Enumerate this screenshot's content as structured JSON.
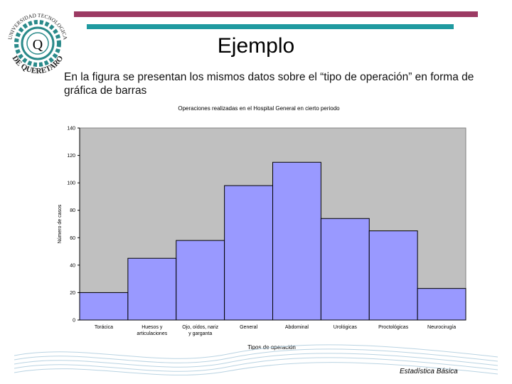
{
  "colors": {
    "top_bar": "#9c3a63",
    "mid_bar": "#1f9aa0",
    "plot_bg": "#c0c0c0",
    "bar_fill": "#9999ff",
    "bar_stroke": "#000000"
  },
  "logo": {
    "text_top": "UNIVERSIDAD TECNOLOGICA",
    "text_bottom": "DE QUERETARO",
    "letter": "Q",
    "icon": "university-seal-icon"
  },
  "slide": {
    "title": "Ejemplo",
    "subtitle": "En la figura se presentan los mismos datos sobre el “tipo de operación” en forma de gráfica de barras",
    "footer": "Estadística Básica"
  },
  "chart_data": {
    "type": "bar",
    "title": "Operaciones realizadas en el Hospital General en cierto periodo",
    "xlabel": "Tipos de operación",
    "ylabel": "Número de casos",
    "categories": [
      "Torácica",
      "Huesos y articulaciones",
      "Ojo, oídos, nariz y garganta",
      "General",
      "Abdominal",
      "Urológicas",
      "Proctológicas",
      "Neurocirugía"
    ],
    "values": [
      20,
      45,
      58,
      98,
      115,
      74,
      65,
      23
    ],
    "ylim": [
      0,
      140
    ],
    "yticks": [
      0,
      20,
      40,
      60,
      80,
      100,
      120,
      140
    ],
    "grid": false,
    "legend": "none"
  }
}
